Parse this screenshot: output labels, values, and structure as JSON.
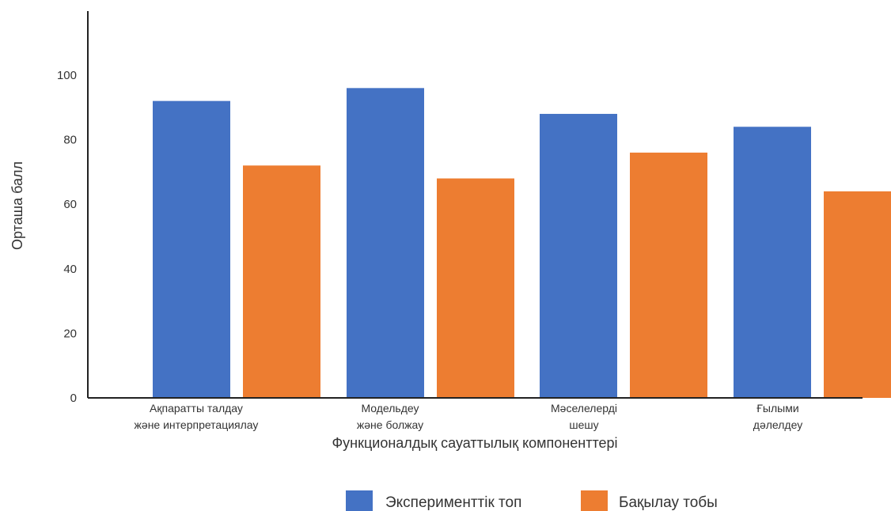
{
  "chart_data": {
    "type": "bar",
    "title": "",
    "xlabel": "Функционалдық сауаттылық компоненттері",
    "ylabel": "Орташа балл",
    "ylim": [
      0,
      120
    ],
    "yticks": [
      0,
      20,
      40,
      60,
      80,
      100
    ],
    "grid": false,
    "legend_position": "bottom",
    "categories": [
      [
        "Ақпаратты талдау",
        "және интерпретациялау"
      ],
      [
        "Модельдеу",
        "және болжау"
      ],
      [
        "Мәселелерді",
        "шешу"
      ],
      [
        "Ғылыми",
        "дәлелдеу"
      ]
    ],
    "series": [
      {
        "name": "Эксперименттік топ",
        "color": "#4472C4",
        "values": [
          92,
          96,
          88,
          84
        ]
      },
      {
        "name": "Бақылау тобы",
        "color": "#ED7D31",
        "values": [
          72,
          68,
          76,
          64
        ]
      }
    ]
  }
}
